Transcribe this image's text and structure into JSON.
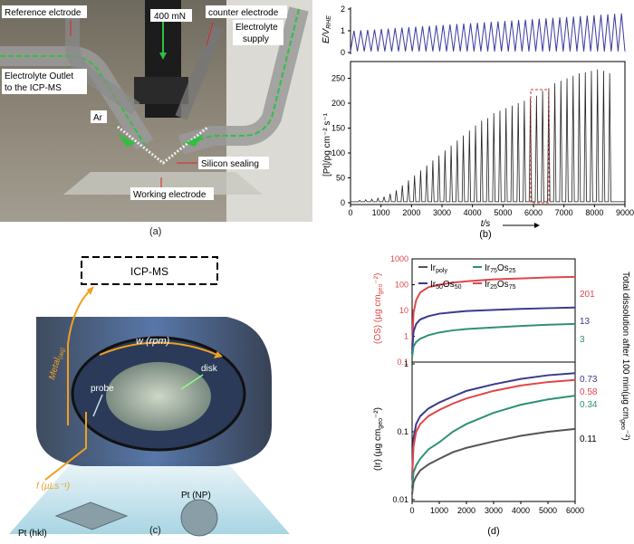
{
  "panel_a": {
    "caption": "(a)",
    "labels": {
      "ref": "Reference elctrode",
      "force": "400 mN",
      "counter": "counter electrode",
      "supply1": "Electrolyte",
      "supply2": "supply",
      "outlet1": "Electrolyte Outlet",
      "outlet2": "to the ICP-MS",
      "ar": "Ar",
      "sealing": "Silicon sealing",
      "working": "Working electrode"
    }
  },
  "panel_b": {
    "caption": "(b)",
    "top_ylabel": "E/V",
    "top_ylabel_sub": "RHE",
    "top_yticks": [
      "0",
      "1",
      "2"
    ],
    "bottom_ylabel": "[Pt]/pg cm⁻² s⁻¹",
    "bottom_yticks": [
      "0",
      "50",
      "100",
      "150",
      "200",
      "250"
    ],
    "xticks": [
      "0",
      "1000",
      "2000",
      "3000",
      "4000",
      "5000",
      "6000",
      "7000",
      "8000",
      "9000"
    ],
    "xlabel": "t/s"
  },
  "panel_c": {
    "caption": "(c)",
    "icpms": "ICP-MS",
    "rpm": "w (rpm)",
    "metal": "Metal",
    "metal_sub": "(aq)",
    "probe": "probe",
    "disk": "disk",
    "flow": "f (µLs⁻¹)",
    "pt_np": "Pt (NP)",
    "pt_hkl": "Pt (hkl)"
  },
  "panel_d": {
    "caption": "(d)",
    "legend": {
      "poly": "Ir",
      "poly_sub": "poly",
      "ir75": "Ir",
      "ir75_sub1": "75",
      "ir75_os": "Os",
      "ir75_sub2": "25",
      "ir50": "Ir",
      "ir50_sub1": "50",
      "ir50_os": "Os",
      "ir50_sub2": "50",
      "ir25": "Ir",
      "ir25_sub1": "25",
      "ir25_os": "Os",
      "ir25_sub2": "75"
    },
    "top_ylabel": "(OS) (µg cm",
    "top_ylabel_sub": "geo",
    "top_ylabel_end": "⁻²)",
    "bottom_ylabel": "(Ir) (µg cm",
    "bottom_ylabel_sub": "geo",
    "bottom_ylabel_end": "⁻²)",
    "right_label": "Total dissolution after 100 min(µg cm",
    "right_label_sub": "geo",
    "right_label_end": "⁻²)",
    "top_yticks": [
      "0.1",
      "1",
      "10",
      "100",
      "1000"
    ],
    "bottom_yticks": [
      "0.01",
      "0.1",
      "1"
    ],
    "xticks": [
      "0",
      "1000",
      "2000",
      "3000",
      "4000",
      "5000",
      "6000"
    ],
    "top_end_values": [
      "201",
      "13",
      "3"
    ],
    "bottom_end_values": [
      "0.73",
      "0.58",
      "0.34",
      "0.11"
    ]
  },
  "chart_data": [
    {
      "type": "line",
      "panel": "b-top",
      "ylabel": "E/V RHE",
      "xlim": [
        0,
        9000
      ],
      "ylim": [
        0,
        2
      ],
      "series": [
        {
          "color": "#3a3aa0",
          "upper_potential_start": 1.0,
          "upper_potential_end": 1.8,
          "lower_potential": 0.05,
          "cycles": 40
        }
      ]
    },
    {
      "type": "line",
      "panel": "b-bottom",
      "xlabel": "t/s",
      "ylabel": "[Pt]/pg cm-2 s-1",
      "xlim": [
        0,
        9000
      ],
      "ylim": [
        0,
        280
      ],
      "peaks_t": [
        300,
        500,
        700,
        900,
        1100,
        1300,
        1500,
        1700,
        1900,
        2100,
        2300,
        2500,
        2700,
        2900,
        3100,
        3300,
        3500,
        3700,
        3900,
        4100,
        4300,
        4500,
        4700,
        4900,
        5100,
        5300,
        5500,
        5700,
        5900,
        6100,
        6300,
        6500,
        6700,
        6900,
        7100,
        7300,
        7500,
        7700,
        7900,
        8100,
        8300,
        8500
      ],
      "peaks_v": [
        5,
        6,
        7,
        9,
        12,
        18,
        25,
        35,
        45,
        55,
        65,
        75,
        85,
        95,
        105,
        115,
        125,
        135,
        145,
        155,
        165,
        170,
        180,
        185,
        190,
        195,
        200,
        205,
        210,
        215,
        225,
        230,
        240,
        245,
        250,
        255,
        260,
        262,
        265,
        268,
        265,
        260
      ]
    },
    {
      "type": "line",
      "panel": "d-top",
      "ylabel": "(OS) µg cm-2 geo",
      "yscale": "log",
      "xlim": [
        0,
        6000
      ],
      "ylim": [
        0.1,
        1000
      ],
      "series": [
        {
          "name": "Ir25Os75",
          "color": "#e0454b",
          "x": [
            0,
            50,
            150,
            300,
            600,
            1000,
            1500,
            2000,
            3000,
            4000,
            5000,
            6000
          ],
          "y": [
            0.3,
            8,
            25,
            50,
            80,
            100,
            120,
            135,
            160,
            175,
            190,
            201
          ]
        },
        {
          "name": "Ir50Os50",
          "color": "#3a3a8c",
          "x": [
            0,
            50,
            150,
            300,
            600,
            1000,
            1500,
            2000,
            3000,
            4000,
            5000,
            6000
          ],
          "y": [
            0.2,
            1.5,
            3,
            4.5,
            6,
            7.5,
            8.5,
            9.5,
            10.5,
            11.5,
            12.3,
            13
          ]
        },
        {
          "name": "Ir75Os25",
          "color": "#2f9078",
          "x": [
            0,
            50,
            150,
            300,
            600,
            1000,
            1500,
            2000,
            3000,
            4000,
            5000,
            6000
          ],
          "y": [
            0.15,
            0.4,
            0.6,
            0.8,
            1.1,
            1.4,
            1.7,
            1.9,
            2.2,
            2.5,
            2.8,
            3
          ]
        }
      ]
    },
    {
      "type": "line",
      "panel": "d-bottom",
      "ylabel": "(Ir) µg cm-2 geo",
      "yscale": "log",
      "xlim": [
        0,
        6000
      ],
      "ylim": [
        0.01,
        1
      ],
      "series": [
        {
          "name": "Ir50Os50",
          "color": "#3a3a8c",
          "x": [
            0,
            50,
            150,
            300,
            600,
            1000,
            1500,
            2000,
            3000,
            4000,
            5000,
            6000
          ],
          "y": [
            0.02,
            0.08,
            0.13,
            0.17,
            0.22,
            0.27,
            0.33,
            0.4,
            0.5,
            0.6,
            0.68,
            0.73
          ]
        },
        {
          "name": "Ir25Os75",
          "color": "#e0454b",
          "x": [
            0,
            50,
            150,
            300,
            600,
            1000,
            1500,
            2000,
            3000,
            4000,
            5000,
            6000
          ],
          "y": [
            0.02,
            0.06,
            0.1,
            0.13,
            0.17,
            0.21,
            0.26,
            0.31,
            0.4,
            0.48,
            0.54,
            0.58
          ]
        },
        {
          "name": "Ir75Os25",
          "color": "#2f9078",
          "x": [
            0,
            50,
            150,
            300,
            600,
            1000,
            1500,
            2000,
            3000,
            4000,
            5000,
            6000
          ],
          "y": [
            0.015,
            0.025,
            0.032,
            0.04,
            0.055,
            0.07,
            0.1,
            0.13,
            0.19,
            0.25,
            0.3,
            0.34
          ]
        },
        {
          "name": "Irpoly",
          "color": "#555555",
          "x": [
            0,
            50,
            150,
            300,
            600,
            1000,
            1500,
            2000,
            3000,
            4000,
            5000,
            6000
          ],
          "y": [
            0.012,
            0.018,
            0.022,
            0.027,
            0.033,
            0.04,
            0.05,
            0.058,
            0.072,
            0.087,
            0.1,
            0.11
          ]
        }
      ]
    }
  ]
}
